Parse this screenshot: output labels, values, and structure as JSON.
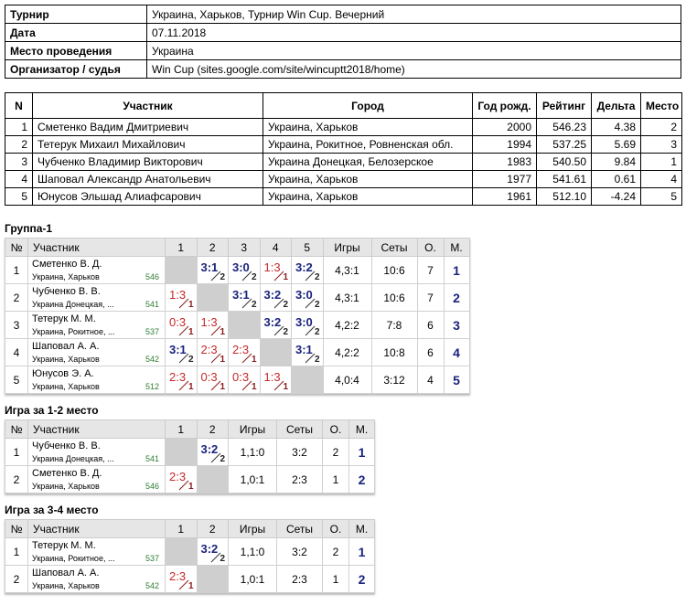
{
  "info": {
    "rows": [
      [
        "Турнир",
        "Украина, Харьков, Турнир Win Cup. Вечерний"
      ],
      [
        "Дата",
        "07.11.2018"
      ],
      [
        "Место проведения",
        "Украина"
      ],
      [
        "Организатор / судья",
        "Win Cup (sites.google.com/site/wincuptt2018/home)"
      ]
    ]
  },
  "participants": {
    "headers": [
      "N",
      "Участник",
      "Город",
      "Год рожд.",
      "Рейтинг",
      "Дельта",
      "Место"
    ],
    "rows": [
      [
        "1",
        "Сметенко Вадим Дмитриевич",
        "Украина, Харьков",
        "2000",
        "546.23",
        "4.38",
        "2"
      ],
      [
        "2",
        "Тетерук Михаил Михайлович",
        "Украина, Рокитное, Ровненская обл.",
        "1994",
        "537.25",
        "5.69",
        "3"
      ],
      [
        "3",
        "Чубченко Владимир Викторович",
        "Украина Донецкая, Белозерское",
        "1983",
        "540.50",
        "9.84",
        "1"
      ],
      [
        "4",
        "Шаповал Александр Анатольевич",
        "Украина, Харьков",
        "1977",
        "541.61",
        "0.61",
        "4"
      ],
      [
        "5",
        "Юнусов Эльшад Алиафсарович",
        "Украина, Харьков",
        "1961",
        "512.10",
        "-4.24",
        "5"
      ]
    ]
  },
  "groups": [
    {
      "title": "Группа-1",
      "headers": [
        "№",
        "Участник",
        "1",
        "2",
        "3",
        "4",
        "5",
        "Игры",
        "Сеты",
        "О.",
        "М."
      ],
      "rows": [
        {
          "n": "1",
          "name": "Сметенко В. Д.",
          "city": "Украина, Харьков",
          "rating": "546",
          "cells": [
            null,
            {
              "score": "3:1",
              "points": "2"
            },
            {
              "score": "3:0",
              "points": "2"
            },
            {
              "score": "1:3",
              "points": "1"
            },
            {
              "score": "3:2",
              "points": "2"
            }
          ],
          "games": "4,3:1",
          "sets": "10:6",
          "points": "7",
          "place": "1"
        },
        {
          "n": "2",
          "name": "Чубченко В. В.",
          "city": "Украина Донецкая, ...",
          "rating": "541",
          "cells": [
            {
              "score": "1:3",
              "points": "1"
            },
            null,
            {
              "score": "3:1",
              "points": "2"
            },
            {
              "score": "3:2",
              "points": "2"
            },
            {
              "score": "3:0",
              "points": "2"
            }
          ],
          "games": "4,3:1",
          "sets": "10:6",
          "points": "7",
          "place": "2"
        },
        {
          "n": "3",
          "name": "Тетерук М. М.",
          "city": "Украина, Рокитное, ...",
          "rating": "537",
          "cells": [
            {
              "score": "0:3",
              "points": "1"
            },
            {
              "score": "1:3",
              "points": "1"
            },
            null,
            {
              "score": "3:2",
              "points": "2"
            },
            {
              "score": "3:0",
              "points": "2"
            }
          ],
          "games": "4,2:2",
          "sets": "7:8",
          "points": "6",
          "place": "3"
        },
        {
          "n": "4",
          "name": "Шаповал А. А.",
          "city": "Украина, Харьков",
          "rating": "542",
          "cells": [
            {
              "score": "3:1",
              "points": "2"
            },
            {
              "score": "2:3",
              "points": "1"
            },
            {
              "score": "2:3",
              "points": "1"
            },
            null,
            {
              "score": "3:1",
              "points": "2"
            }
          ],
          "games": "4,2:2",
          "sets": "10:8",
          "points": "6",
          "place": "4"
        },
        {
          "n": "5",
          "name": "Юнусов Э. А.",
          "city": "Украина, Харьков",
          "rating": "512",
          "cells": [
            {
              "score": "2:3",
              "points": "1"
            },
            {
              "score": "0:3",
              "points": "1"
            },
            {
              "score": "0:3",
              "points": "1"
            },
            {
              "score": "1:3",
              "points": "1"
            },
            null
          ],
          "games": "4,0:4",
          "sets": "3:12",
          "points": "4",
          "place": "5"
        }
      ]
    },
    {
      "title": "Игра за 1-2 место",
      "headers": [
        "№",
        "Участник",
        "1",
        "2",
        "Игры",
        "Сеты",
        "О.",
        "М."
      ],
      "rows": [
        {
          "n": "1",
          "name": "Чубченко В. В.",
          "city": "Украина Донецкая, ...",
          "rating": "541",
          "cells": [
            null,
            {
              "score": "3:2",
              "points": "2"
            }
          ],
          "games": "1,1:0",
          "sets": "3:2",
          "points": "2",
          "place": "1"
        },
        {
          "n": "2",
          "name": "Сметенко В. Д.",
          "city": "Украина, Харьков",
          "rating": "546",
          "cells": [
            {
              "score": "2:3",
              "points": "1"
            },
            null
          ],
          "games": "1,0:1",
          "sets": "2:3",
          "points": "1",
          "place": "2"
        }
      ]
    },
    {
      "title": "Игра за 3-4 место",
      "headers": [
        "№",
        "Участник",
        "1",
        "2",
        "Игры",
        "Сеты",
        "О.",
        "М."
      ],
      "rows": [
        {
          "n": "1",
          "name": "Тетерук М. М.",
          "city": "Украина, Рокитное, ...",
          "rating": "537",
          "cells": [
            null,
            {
              "score": "3:2",
              "points": "2"
            }
          ],
          "games": "1,1:0",
          "sets": "3:2",
          "points": "2",
          "place": "1"
        },
        {
          "n": "2",
          "name": "Шаповал А. А.",
          "city": "Украина, Харьков",
          "rating": "542",
          "cells": [
            {
              "score": "2:3",
              "points": "1"
            },
            null
          ],
          "games": "1,0:1",
          "sets": "2:3",
          "points": "1",
          "place": "2"
        }
      ]
    }
  ]
}
